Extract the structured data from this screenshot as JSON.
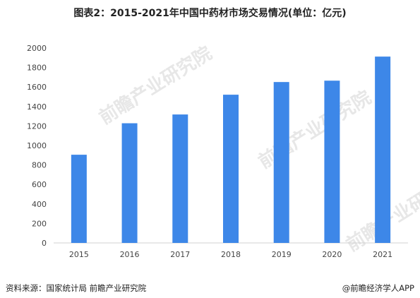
{
  "chart_data": {
    "type": "bar",
    "title": "图表2：2015-2021年中国中药材市场交易情况(单位：亿元)",
    "categories": [
      "2015",
      "2016",
      "2017",
      "2018",
      "2019",
      "2020",
      "2021"
    ],
    "values": [
      905,
      1228,
      1318,
      1521,
      1651,
      1665,
      1912
    ],
    "ylim": [
      0,
      2000
    ],
    "yticks": [
      0,
      200,
      400,
      600,
      800,
      1000,
      1200,
      1400,
      1600,
      1800,
      2000
    ],
    "bar_color": "#3d87e8",
    "grid": false,
    "legend": "none"
  },
  "watermark": "前瞻产业研究院",
  "footer": {
    "source": "资料来源：国家统计局 前瞻产业研究院",
    "brand": "@前瞻经济学人APP"
  }
}
